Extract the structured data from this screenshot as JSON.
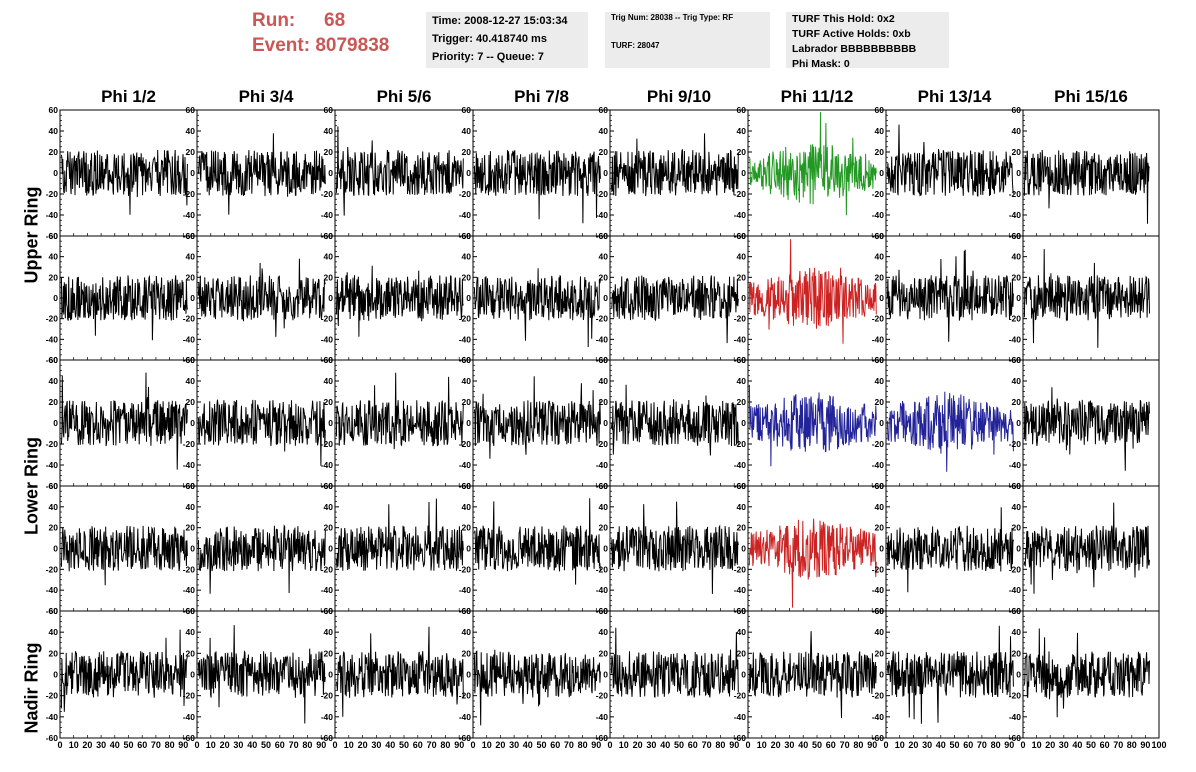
{
  "header": {
    "run_label": "Run:",
    "run_value": "68",
    "event_label": "Event:",
    "event_value": "8079838",
    "time": "Time: 2008-12-27 15:03:34",
    "trigger": "Trigger: 40.418740 ms",
    "priority": "Priority: 7 -- Queue: 7",
    "trig_num": "Trig Num: 28038 -- Trig Type: RF",
    "turf": "TURF: 28047",
    "turf_hold": "TURF This Hold: 0x2",
    "turf_active": "TURF Active Holds: 0xb",
    "labrador": "Labrador BBBBBBBBBB",
    "phi_mask": "Phi Mask: 0"
  },
  "columns": [
    "Phi 1/2",
    "Phi 3/4",
    "Phi 5/6",
    "Phi 7/8",
    "Phi 9/10",
    "Phi 11/12",
    "Phi 13/14",
    "Phi 15/16"
  ],
  "rings": [
    {
      "label": "Upper Ring"
    },
    {
      "label": "Lower Ring"
    },
    {
      "label": "Nadir Ring"
    }
  ],
  "colors": {
    "trace_default": "#000000",
    "trace_green": "#229922",
    "trace_red": "#cc2222",
    "trace_blue": "#222299",
    "header_red": "#cc5555",
    "info_box_bg": "#ececec"
  },
  "chart_data": {
    "type": "line",
    "ylim": [
      -60,
      60
    ],
    "y_ticks": [
      60,
      40,
      20,
      0,
      -20,
      -40,
      -60
    ],
    "y_tick_labels": [
      "60",
      "40",
      "20",
      "0",
      "-20",
      "-40",
      "-60"
    ],
    "xlim": [
      0,
      100
    ],
    "x_ticks": [
      0,
      10,
      20,
      30,
      40,
      50,
      60,
      70,
      80,
      90,
      100
    ],
    "x_tick_labels": [
      "0",
      "10",
      "20",
      "30",
      "40",
      "50",
      "60",
      "70",
      "80",
      "90",
      "100"
    ],
    "panels_rows": 5,
    "panels_cols": 8,
    "highlighted_panels": [
      {
        "row": 0,
        "col": 5,
        "color": "green"
      },
      {
        "row": 1,
        "col": 5,
        "color": "red"
      },
      {
        "row": 2,
        "col": 5,
        "color": "blue"
      },
      {
        "row": 2,
        "col": 6,
        "color": "blue"
      },
      {
        "row": 3,
        "col": 5,
        "color": "red"
      }
    ]
  }
}
